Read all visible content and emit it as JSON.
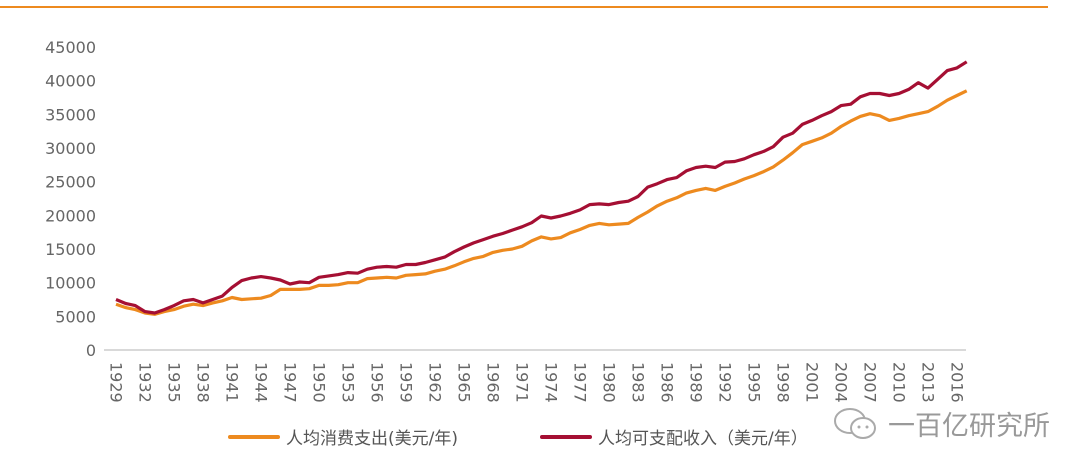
{
  "chart_data": {
    "type": "line",
    "title": "",
    "xlabel": "",
    "ylabel": "",
    "ylim": [
      0,
      45000
    ],
    "yticks": [
      "0",
      "5000",
      "10000",
      "15000",
      "20000",
      "25000",
      "30000",
      "35000",
      "40000",
      "45000"
    ],
    "xticks": [
      "1929",
      "1932",
      "1935",
      "1938",
      "1941",
      "1944",
      "1947",
      "1950",
      "1953",
      "1956",
      "1959",
      "1962",
      "1965",
      "1968",
      "1971",
      "1974",
      "1977",
      "1980",
      "1983",
      "1986",
      "1989",
      "1992",
      "1995",
      "1998",
      "2001",
      "2004",
      "2007",
      "2010",
      "2013",
      "2016"
    ],
    "x_start": 1929,
    "x_end": 2017,
    "grid": false,
    "legend_position": "bottom",
    "series": [
      {
        "name": "人均消费支出(美元/年)",
        "color": "#ed8a1f",
        "values": [
          6800,
          6300,
          6000,
          5500,
          5300,
          5700,
          6000,
          6500,
          6800,
          6600,
          7000,
          7300,
          7800,
          7500,
          7600,
          7700,
          8100,
          9000,
          9000,
          9000,
          9100,
          9600,
          9600,
          9700,
          10000,
          10000,
          10600,
          10700,
          10800,
          10700,
          11100,
          11200,
          11300,
          11700,
          12000,
          12500,
          13100,
          13600,
          13900,
          14500,
          14800,
          15000,
          15400,
          16200,
          16800,
          16500,
          16700,
          17400,
          17900,
          18500,
          18800,
          18600,
          18700,
          18800,
          19700,
          20500,
          21400,
          22100,
          22600,
          23300,
          23700,
          24000,
          23700,
          24300,
          24800,
          25400,
          25900,
          26500,
          27200,
          28200,
          29300,
          30500,
          31000,
          31500,
          32200,
          33200,
          34000,
          34700,
          35100,
          34800,
          34100,
          34400,
          34800,
          35100,
          35400,
          36200,
          37100,
          37800,
          38500
        ]
      },
      {
        "name": "人均可支配收入（美元/年）",
        "color": "#a50f33",
        "values": [
          7500,
          6900,
          6600,
          5700,
          5500,
          6000,
          6600,
          7300,
          7500,
          7000,
          7500,
          8000,
          9300,
          10300,
          10700,
          10900,
          10700,
          10400,
          9800,
          10100,
          10000,
          10800,
          11000,
          11200,
          11500,
          11400,
          12000,
          12300,
          12400,
          12300,
          12700,
          12700,
          13000,
          13400,
          13800,
          14600,
          15300,
          15900,
          16400,
          16900,
          17300,
          17800,
          18300,
          18900,
          19900,
          19600,
          19900,
          20300,
          20800,
          21600,
          21700,
          21600,
          21900,
          22100,
          22800,
          24200,
          24700,
          25300,
          25600,
          26600,
          27100,
          27300,
          27100,
          27900,
          28000,
          28400,
          29000,
          29500,
          30200,
          31600,
          32200,
          33500,
          34100,
          34800,
          35400,
          36300,
          36500,
          37600,
          38100,
          38100,
          37800,
          38100,
          38700,
          39700,
          38900,
          40200,
          41500,
          41900,
          42800
        ]
      }
    ]
  },
  "watermark": {
    "text": "一百亿研究所",
    "icon": "wechat-icon"
  },
  "colors": {
    "accent_rule": "#ed8a1f",
    "axis": "#d9d9d9"
  }
}
